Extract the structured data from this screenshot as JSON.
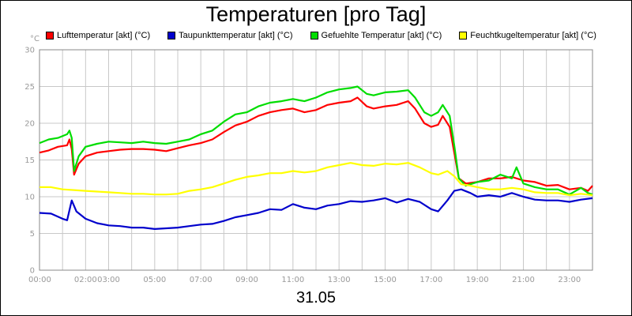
{
  "chart_data": {
    "type": "line",
    "title": "Temperaturen [pro Tag]",
    "date_label": "31.05",
    "y_unit": "°C",
    "ylim": [
      0,
      30
    ],
    "y_ticks": [
      0,
      5,
      10,
      15,
      20,
      25,
      30
    ],
    "x_range_hours": [
      0,
      24
    ],
    "x_tick_labels": [
      {
        "hour": 0,
        "label": "00:00"
      },
      {
        "hour": 2,
        "label": "02:00"
      },
      {
        "hour": 3,
        "label": "03:00"
      },
      {
        "hour": 5,
        "label": "05:00"
      },
      {
        "hour": 7,
        "label": "07:00"
      },
      {
        "hour": 9,
        "label": "09:00"
      },
      {
        "hour": 11,
        "label": "11:00"
      },
      {
        "hour": 13,
        "label": "13:00"
      },
      {
        "hour": 15,
        "label": "15:00"
      },
      {
        "hour": 17,
        "label": "17:00"
      },
      {
        "hour": 19,
        "label": "19:00"
      },
      {
        "hour": 21,
        "label": "21:00"
      },
      {
        "hour": 23,
        "label": "23:00"
      }
    ],
    "grid": true,
    "legend_position": "top",
    "series": [
      {
        "name": "Lufttemperatur [akt] (°C)",
        "color": "#ff0000",
        "points": [
          [
            0,
            16.0
          ],
          [
            0.4,
            16.3
          ],
          [
            0.8,
            16.8
          ],
          [
            1.2,
            17.0
          ],
          [
            1.3,
            17.8
          ],
          [
            1.4,
            16.5
          ],
          [
            1.5,
            13.0
          ],
          [
            1.7,
            14.5
          ],
          [
            2.0,
            15.5
          ],
          [
            2.5,
            16.0
          ],
          [
            3.0,
            16.2
          ],
          [
            3.5,
            16.4
          ],
          [
            4.0,
            16.5
          ],
          [
            4.5,
            16.5
          ],
          [
            5.0,
            16.4
          ],
          [
            5.5,
            16.2
          ],
          [
            6.0,
            16.6
          ],
          [
            6.5,
            17.0
          ],
          [
            7.0,
            17.3
          ],
          [
            7.5,
            17.8
          ],
          [
            8.0,
            18.8
          ],
          [
            8.5,
            19.7
          ],
          [
            9.0,
            20.2
          ],
          [
            9.5,
            21.0
          ],
          [
            10.0,
            21.5
          ],
          [
            10.5,
            21.8
          ],
          [
            11.0,
            22.0
          ],
          [
            11.5,
            21.5
          ],
          [
            12.0,
            21.8
          ],
          [
            12.5,
            22.5
          ],
          [
            13.0,
            22.8
          ],
          [
            13.5,
            23.0
          ],
          [
            13.8,
            23.5
          ],
          [
            14.2,
            22.3
          ],
          [
            14.5,
            22.0
          ],
          [
            15.0,
            22.3
          ],
          [
            15.5,
            22.5
          ],
          [
            16.0,
            23.0
          ],
          [
            16.3,
            22.0
          ],
          [
            16.7,
            20.0
          ],
          [
            17.0,
            19.5
          ],
          [
            17.3,
            19.8
          ],
          [
            17.5,
            21.0
          ],
          [
            17.8,
            19.5
          ],
          [
            18.0,
            16.0
          ],
          [
            18.2,
            12.5
          ],
          [
            18.5,
            11.8
          ],
          [
            19.0,
            12.0
          ],
          [
            19.5,
            12.5
          ],
          [
            20.0,
            12.5
          ],
          [
            20.5,
            12.7
          ],
          [
            21.0,
            12.2
          ],
          [
            21.5,
            12.0
          ],
          [
            22.0,
            11.5
          ],
          [
            22.5,
            11.6
          ],
          [
            23.0,
            11.0
          ],
          [
            23.5,
            11.2
          ],
          [
            23.8,
            10.8
          ],
          [
            24.0,
            11.5
          ]
        ]
      },
      {
        "name": "Taupunkttemperatur [akt] (°C)",
        "color": "#0000cc",
        "points": [
          [
            0,
            7.8
          ],
          [
            0.5,
            7.7
          ],
          [
            1.0,
            7.0
          ],
          [
            1.2,
            6.8
          ],
          [
            1.4,
            9.5
          ],
          [
            1.6,
            8.0
          ],
          [
            2.0,
            7.0
          ],
          [
            2.5,
            6.4
          ],
          [
            3.0,
            6.1
          ],
          [
            3.5,
            6.0
          ],
          [
            4.0,
            5.8
          ],
          [
            4.5,
            5.8
          ],
          [
            5.0,
            5.6
          ],
          [
            5.5,
            5.7
          ],
          [
            6.0,
            5.8
          ],
          [
            6.5,
            6.0
          ],
          [
            7.0,
            6.2
          ],
          [
            7.5,
            6.3
          ],
          [
            8.0,
            6.7
          ],
          [
            8.5,
            7.2
          ],
          [
            9.0,
            7.5
          ],
          [
            9.5,
            7.8
          ],
          [
            10.0,
            8.3
          ],
          [
            10.5,
            8.2
          ],
          [
            11.0,
            9.0
          ],
          [
            11.5,
            8.5
          ],
          [
            12.0,
            8.3
          ],
          [
            12.5,
            8.8
          ],
          [
            13.0,
            9.0
          ],
          [
            13.5,
            9.4
          ],
          [
            14.0,
            9.3
          ],
          [
            14.5,
            9.5
          ],
          [
            15.0,
            9.8
          ],
          [
            15.5,
            9.2
          ],
          [
            16.0,
            9.7
          ],
          [
            16.5,
            9.3
          ],
          [
            17.0,
            8.3
          ],
          [
            17.3,
            8.0
          ],
          [
            17.7,
            9.5
          ],
          [
            18.0,
            10.8
          ],
          [
            18.3,
            11.0
          ],
          [
            18.7,
            10.5
          ],
          [
            19.0,
            10.0
          ],
          [
            19.5,
            10.2
          ],
          [
            20.0,
            10.0
          ],
          [
            20.5,
            10.5
          ],
          [
            21.0,
            10.0
          ],
          [
            21.5,
            9.6
          ],
          [
            22.0,
            9.5
          ],
          [
            22.5,
            9.5
          ],
          [
            23.0,
            9.3
          ],
          [
            23.5,
            9.6
          ],
          [
            24.0,
            9.8
          ]
        ]
      },
      {
        "name": "Gefuehlte Temperatur [akt] (°C)",
        "color": "#00dd00",
        "points": [
          [
            0,
            17.3
          ],
          [
            0.4,
            17.8
          ],
          [
            0.8,
            18.0
          ],
          [
            1.2,
            18.5
          ],
          [
            1.3,
            19.0
          ],
          [
            1.4,
            18.0
          ],
          [
            1.5,
            13.5
          ],
          [
            1.7,
            15.5
          ],
          [
            2.0,
            16.8
          ],
          [
            2.5,
            17.2
          ],
          [
            3.0,
            17.5
          ],
          [
            3.5,
            17.4
          ],
          [
            4.0,
            17.3
          ],
          [
            4.5,
            17.5
          ],
          [
            5.0,
            17.3
          ],
          [
            5.5,
            17.2
          ],
          [
            6.0,
            17.5
          ],
          [
            6.5,
            17.8
          ],
          [
            7.0,
            18.5
          ],
          [
            7.5,
            19.0
          ],
          [
            8.0,
            20.2
          ],
          [
            8.5,
            21.2
          ],
          [
            9.0,
            21.5
          ],
          [
            9.5,
            22.3
          ],
          [
            10.0,
            22.8
          ],
          [
            10.5,
            23.0
          ],
          [
            11.0,
            23.3
          ],
          [
            11.5,
            23.0
          ],
          [
            12.0,
            23.5
          ],
          [
            12.5,
            24.2
          ],
          [
            13.0,
            24.6
          ],
          [
            13.5,
            24.8
          ],
          [
            13.8,
            25.0
          ],
          [
            14.2,
            24.0
          ],
          [
            14.5,
            23.8
          ],
          [
            15.0,
            24.2
          ],
          [
            15.5,
            24.3
          ],
          [
            16.0,
            24.5
          ],
          [
            16.3,
            23.5
          ],
          [
            16.7,
            21.5
          ],
          [
            17.0,
            21.0
          ],
          [
            17.3,
            21.5
          ],
          [
            17.5,
            22.5
          ],
          [
            17.8,
            21.0
          ],
          [
            18.0,
            17.0
          ],
          [
            18.2,
            12.5
          ],
          [
            18.5,
            11.5
          ],
          [
            19.0,
            12.0
          ],
          [
            19.5,
            12.2
          ],
          [
            20.0,
            13.0
          ],
          [
            20.5,
            12.5
          ],
          [
            20.7,
            14.0
          ],
          [
            21.0,
            11.8
          ],
          [
            21.5,
            11.3
          ],
          [
            22.0,
            11.0
          ],
          [
            22.5,
            11.0
          ],
          [
            23.0,
            10.3
          ],
          [
            23.5,
            11.2
          ],
          [
            23.8,
            10.5
          ],
          [
            24.0,
            10.3
          ]
        ]
      },
      {
        "name": "Feuchtkugeltemperatur [akt] (°C)",
        "color": "#ffff00",
        "points": [
          [
            0,
            11.3
          ],
          [
            0.5,
            11.3
          ],
          [
            1.0,
            11.0
          ],
          [
            1.5,
            10.9
          ],
          [
            2.0,
            10.8
          ],
          [
            2.5,
            10.7
          ],
          [
            3.0,
            10.6
          ],
          [
            3.5,
            10.5
          ],
          [
            4.0,
            10.4
          ],
          [
            4.5,
            10.4
          ],
          [
            5.0,
            10.3
          ],
          [
            5.5,
            10.3
          ],
          [
            6.0,
            10.4
          ],
          [
            6.5,
            10.8
          ],
          [
            7.0,
            11.0
          ],
          [
            7.5,
            11.3
          ],
          [
            8.0,
            11.8
          ],
          [
            8.5,
            12.3
          ],
          [
            9.0,
            12.7
          ],
          [
            9.5,
            12.9
          ],
          [
            10.0,
            13.2
          ],
          [
            10.5,
            13.2
          ],
          [
            11.0,
            13.5
          ],
          [
            11.5,
            13.3
          ],
          [
            12.0,
            13.5
          ],
          [
            12.5,
            14.0
          ],
          [
            13.0,
            14.3
          ],
          [
            13.5,
            14.6
          ],
          [
            14.0,
            14.3
          ],
          [
            14.5,
            14.2
          ],
          [
            15.0,
            14.5
          ],
          [
            15.5,
            14.4
          ],
          [
            16.0,
            14.6
          ],
          [
            16.5,
            14.0
          ],
          [
            17.0,
            13.2
          ],
          [
            17.3,
            13.0
          ],
          [
            17.7,
            13.5
          ],
          [
            18.0,
            12.8
          ],
          [
            18.3,
            11.7
          ],
          [
            18.7,
            11.5
          ],
          [
            19.0,
            11.3
          ],
          [
            19.5,
            11.0
          ],
          [
            20.0,
            11.0
          ],
          [
            20.5,
            11.2
          ],
          [
            21.0,
            11.0
          ],
          [
            21.5,
            10.6
          ],
          [
            22.0,
            10.5
          ],
          [
            22.5,
            10.5
          ],
          [
            23.0,
            10.2
          ],
          [
            23.5,
            10.4
          ],
          [
            24.0,
            10.2
          ]
        ]
      }
    ]
  }
}
